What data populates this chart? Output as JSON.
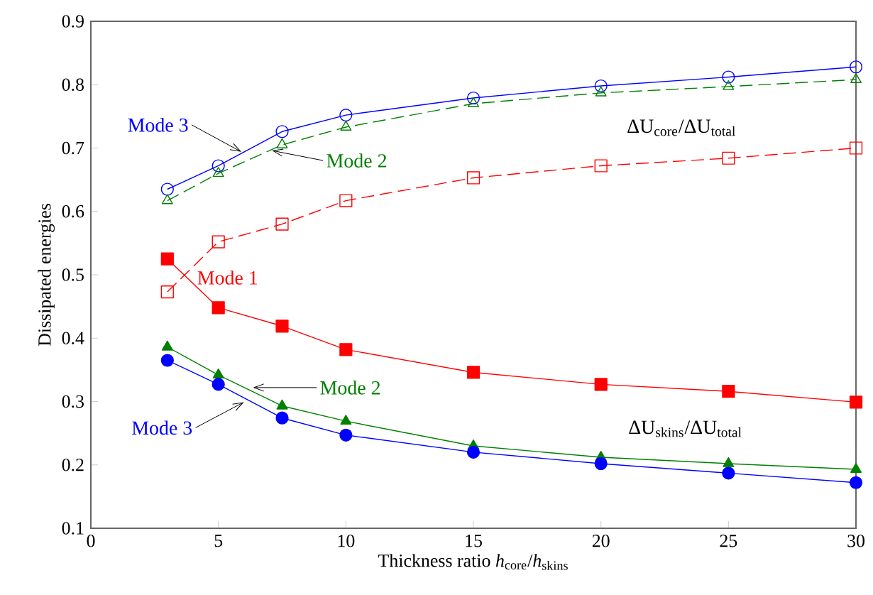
{
  "chart_data": {
    "type": "line",
    "xlabel": "Thickness ratio *h*$_{core}$/*h*$_{skins}$",
    "ylabel": "Dissipated energies",
    "x": [
      3,
      5,
      7.5,
      10,
      15,
      20,
      25,
      30
    ],
    "xlim": [
      0,
      30
    ],
    "xticks": [
      0,
      5,
      10,
      15,
      20,
      25,
      30
    ],
    "ylim": [
      0.1,
      0.9
    ],
    "yticks": [
      0.1,
      0.2,
      0.3,
      0.4,
      0.5,
      0.6,
      0.7,
      0.8,
      0.9
    ],
    "grid": false,
    "series": [
      {
        "color": "#0000ff",
        "marker": "circle",
        "line_style": "solid",
        "values": [
          0.635,
          0.672,
          0.726,
          0.752,
          0.779,
          0.798,
          0.812,
          0.828
        ]
      },
      {
        "color": "#008000",
        "marker": "triangle",
        "line_style": "dashed",
        "values": [
          0.617,
          0.66,
          0.705,
          0.733,
          0.77,
          0.787,
          0.797,
          0.808
        ]
      },
      {
        "color": "#ff0000",
        "marker": "square",
        "line_style": "dashed",
        "values": [
          0.473,
          0.552,
          0.58,
          0.617,
          0.653,
          0.672,
          0.684,
          0.7
        ]
      },
      {
        "color": "#ff0000",
        "marker": "square",
        "line_style": "solid",
        "values": [
          0.525,
          0.448,
          0.419,
          0.382,
          0.346,
          0.327,
          0.316,
          0.299
        ]
      },
      {
        "color": "#008000",
        "marker": "triangle",
        "line_style": "solid",
        "values": [
          0.386,
          0.342,
          0.293,
          0.269,
          0.23,
          0.212,
          0.202,
          0.193
        ]
      },
      {
        "color": "#0000ff",
        "marker": "circle",
        "line_style": "solid",
        "values": [
          0.365,
          0.327,
          0.274,
          0.247,
          0.22,
          0.202,
          0.187,
          0.172
        ]
      }
    ],
    "annotations": [
      {
        "text": "Mode 3",
        "x": 5.9,
        "y": 0.694
      },
      {
        "text": "Mode 2",
        "x": 7.1,
        "y": 0.696
      },
      {
        "text": "Mode 1",
        "x": 3.6,
        "y": 0.5
      },
      {
        "text": "Mode 2",
        "x": 6.35,
        "y": 0.322
      },
      {
        "text": "Mode 3",
        "x": 6.0,
        "y": 0.299
      },
      "ΔU$_{core}$/ΔU$_{total}$",
      "ΔU$_{skins}$/ΔU$_{total}$"
    ]
  }
}
